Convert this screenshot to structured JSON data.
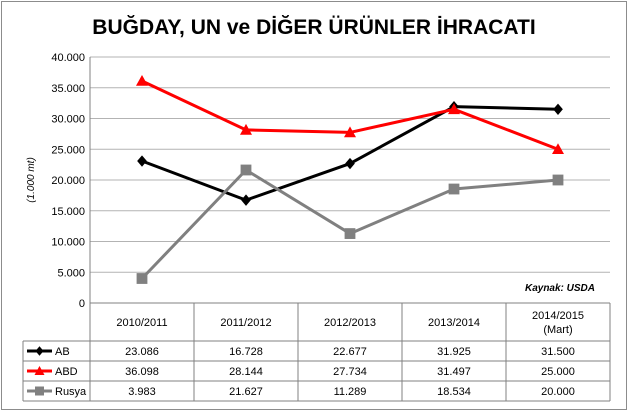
{
  "chart_data": {
    "type": "line",
    "title": "BUĞDAY, UN ve DİĞER ÜRÜNLER İHRACATI",
    "ylabel": "(1.000 mt)",
    "source_note": "Kaynak: USDA",
    "categories": [
      [
        "2010/2011"
      ],
      [
        "2011/2012"
      ],
      [
        "2012/2013"
      ],
      [
        "2013/2014"
      ],
      [
        "2014/2015",
        "(Mart)"
      ]
    ],
    "ylim": [
      0,
      40000
    ],
    "yticks": [
      0,
      5000,
      10000,
      15000,
      20000,
      25000,
      30000,
      35000,
      40000
    ],
    "ytick_labels": [
      "0",
      "5.000",
      "10.000",
      "15.000",
      "20.000",
      "25.000",
      "30.000",
      "35.000",
      "40.000"
    ],
    "grid": true,
    "series": [
      {
        "name": "AB",
        "color": "#000000",
        "marker": "diamond",
        "values": [
          23086,
          16728,
          22677,
          31925,
          31500
        ],
        "labels": [
          "23.086",
          "16.728",
          "22.677",
          "31.925",
          "31.500"
        ]
      },
      {
        "name": "ABD",
        "color": "#ff0000",
        "marker": "triangle",
        "values": [
          36098,
          28144,
          27734,
          31497,
          25000
        ],
        "labels": [
          "36.098",
          "28.144",
          "27.734",
          "31.497",
          "25.000"
        ]
      },
      {
        "name": "Rusya",
        "color": "#808080",
        "marker": "square",
        "values": [
          3983,
          21627,
          11289,
          18534,
          20000
        ],
        "labels": [
          "3.983",
          "21.627",
          "11.289",
          "18.534",
          "20.000"
        ]
      }
    ]
  }
}
